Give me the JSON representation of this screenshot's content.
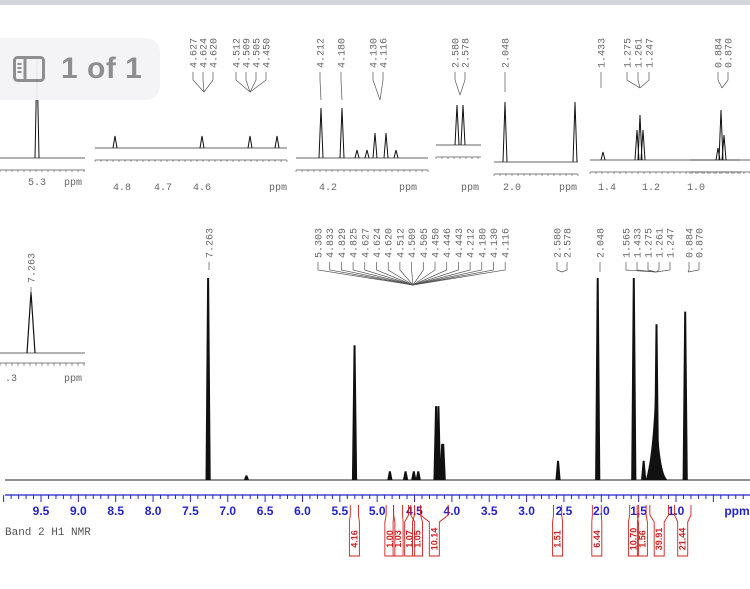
{
  "viewer": {
    "page_indicator": "1 of 1",
    "page_icon": "sidebar-panel-icon"
  },
  "spectrum": {
    "title": "Band 2 H1 NMR",
    "axis_unit": "ppm",
    "axis_color": "#2323c8",
    "integral_color": "#d02020"
  },
  "insets": [
    {
      "id": "inset-5.3",
      "peak_labels": [
        "5.303"
      ],
      "tick_labels": [
        "5.3"
      ],
      "unit": "ppm"
    },
    {
      "id": "inset-4.6",
      "peak_labels": [
        "4.627",
        "4.624",
        "4.620",
        "4.512",
        "4.509",
        "4.505",
        "4.450"
      ],
      "tick_labels": [
        "4.8",
        "4.7",
        "4.6"
      ],
      "unit": "ppm"
    },
    {
      "id": "inset-4.2",
      "peak_labels": [
        "4.212",
        "4.180",
        "4.130",
        "4.116"
      ],
      "tick_labels": [
        "4.2"
      ],
      "unit": "ppm"
    },
    {
      "id": "inset-2.58",
      "peak_labels": [
        "2.580",
        "2.578"
      ],
      "tick_labels": [],
      "unit": "ppm"
    },
    {
      "id": "inset-2.0",
      "peak_labels": [
        "2.048"
      ],
      "tick_labels": [
        "2.0"
      ],
      "unit": "ppm"
    },
    {
      "id": "inset-1.2",
      "peak_labels": [
        "1.433",
        "1.275",
        "1.261",
        "1.247"
      ],
      "tick_labels": [
        "1.4",
        "1.2",
        "1.0"
      ],
      "unit": ""
    },
    {
      "id": "inset-0.87",
      "peak_labels": [
        "0.884",
        "0.870"
      ],
      "tick_labels": [],
      "unit": ""
    },
    {
      "id": "inset-7.26",
      "peak_labels": [
        "7.263"
      ],
      "tick_labels": [
        ".3"
      ],
      "unit": "ppm"
    }
  ],
  "main_peak_labels": {
    "group_7263": [
      "7.263"
    ],
    "group_5_4": [
      "5.303",
      "4.833",
      "4.829",
      "4.825",
      "4.627",
      "4.624",
      "4.620",
      "4.512",
      "4.509",
      "4.505",
      "4.450",
      "4.446",
      "4.443",
      "4.212",
      "4.180",
      "4.130",
      "4.116"
    ],
    "group_258": [
      "2.580",
      "2.578"
    ],
    "group_2048": [
      "2.048"
    ],
    "group_1_0": [
      "1.565",
      "1.433",
      "1.275",
      "1.261",
      "1.247",
      "0.884",
      "0.870"
    ]
  },
  "chart_data": {
    "type": "line",
    "title": "Band 2 H1 NMR",
    "xlabel": "ppm",
    "ylabel": "",
    "xlim": [
      10.0,
      -0.1
    ],
    "x_ticks": [
      "9.5",
      "9.0",
      "8.5",
      "8.0",
      "7.5",
      "7.0",
      "6.5",
      "6.0",
      "5.5",
      "5.0",
      "4.5",
      "4.0",
      "3.5",
      "3.0",
      "2.5",
      "2.0",
      "1.5",
      "1.0",
      "ppm"
    ],
    "peaks": [
      {
        "ppm": 7.263,
        "rel_height": 0.96
      },
      {
        "ppm": 6.75,
        "rel_height": 0.02
      },
      {
        "ppm": 5.303,
        "rel_height": 0.64
      },
      {
        "ppm": 4.83,
        "rel_height": 0.04
      },
      {
        "ppm": 4.62,
        "rel_height": 0.04
      },
      {
        "ppm": 4.51,
        "rel_height": 0.04
      },
      {
        "ppm": 4.45,
        "rel_height": 0.04
      },
      {
        "ppm": 4.212,
        "rel_height": 0.35
      },
      {
        "ppm": 4.18,
        "rel_height": 0.35
      },
      {
        "ppm": 4.13,
        "rel_height": 0.17
      },
      {
        "ppm": 4.116,
        "rel_height": 0.17
      },
      {
        "ppm": 2.579,
        "rel_height": 0.09
      },
      {
        "ppm": 2.048,
        "rel_height": 0.96
      },
      {
        "ppm": 1.565,
        "rel_height": 0.96
      },
      {
        "ppm": 1.433,
        "rel_height": 0.09
      },
      {
        "ppm": 1.261,
        "rel_height": 0.74
      },
      {
        "ppm": 0.877,
        "rel_height": 0.8
      }
    ],
    "integrals": [
      {
        "range": [
          5.36,
          5.25
        ],
        "value": "4.16"
      },
      {
        "range": [
          4.88,
          4.78
        ],
        "value": "1.00"
      },
      {
        "range": [
          4.78,
          4.66
        ],
        "value": "1.03"
      },
      {
        "range": [
          4.58,
          4.55
        ],
        "value": "1.07"
      },
      {
        "range": [
          4.5,
          4.42
        ],
        "value": "1.05"
      },
      {
        "range": [
          4.42,
          4.05
        ],
        "value": "10.14"
      },
      {
        "range": [
          2.64,
          2.53
        ],
        "value": "1.51"
      },
      {
        "range": [
          2.12,
          2.0
        ],
        "value": "6.44"
      },
      {
        "range": [
          1.62,
          1.52
        ],
        "value": "10.70"
      },
      {
        "range": [
          1.5,
          1.4
        ],
        "value": "1.56"
      },
      {
        "range": [
          1.35,
          1.1
        ],
        "value": "39.91"
      },
      {
        "range": [
          1.02,
          0.8
        ],
        "value": "21.44"
      }
    ],
    "grid": false
  }
}
